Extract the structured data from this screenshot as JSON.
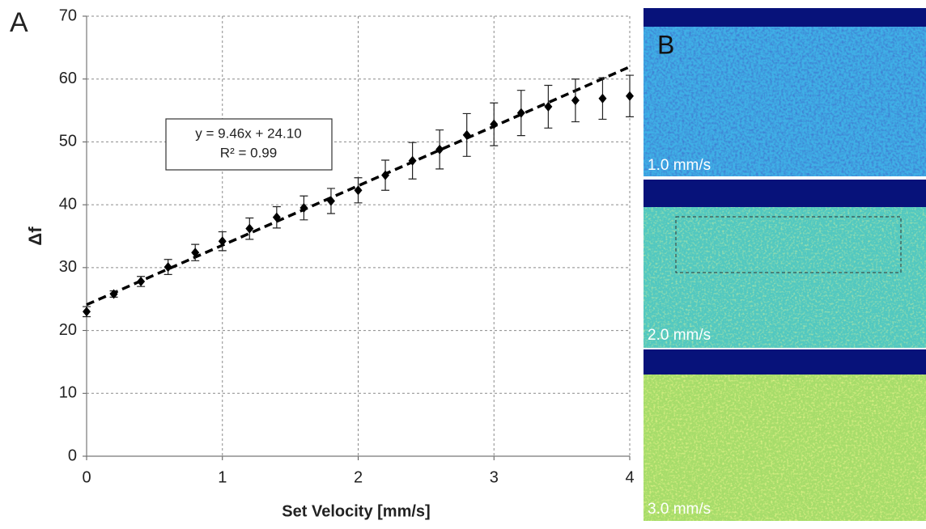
{
  "chart_data": {
    "type": "scatter",
    "panel_label": "A",
    "x": [
      0,
      0.2,
      0.4,
      0.6,
      0.8,
      1.0,
      1.2,
      1.4,
      1.6,
      1.8,
      2.0,
      2.2,
      2.4,
      2.6,
      2.8,
      3.0,
      3.2,
      3.4,
      3.6,
      3.8,
      4.0
    ],
    "values": [
      23.0,
      25.8,
      27.8,
      30.1,
      32.4,
      34.2,
      36.2,
      38.0,
      39.5,
      40.6,
      42.3,
      44.7,
      47.0,
      48.8,
      51.1,
      52.8,
      54.6,
      55.6,
      56.6,
      56.9,
      57.3
    ],
    "errors": [
      0.8,
      0.5,
      0.8,
      1.2,
      1.3,
      1.5,
      1.7,
      1.7,
      1.9,
      2.0,
      2.0,
      2.4,
      2.9,
      3.1,
      3.4,
      3.4,
      3.6,
      3.4,
      3.4,
      3.3,
      3.3
    ],
    "color": "#000000",
    "trendline": {
      "slope": 9.46,
      "intercept": 24.1
    },
    "annotation": [
      "y = 9.46x + 24.10",
      "R² = 0.99"
    ],
    "xlabel": "Set Velocity [mm/s]",
    "ylabel": "Δf",
    "xlim": [
      0,
      4
    ],
    "xticks": [
      0,
      1,
      2,
      3,
      4
    ],
    "ylim": [
      0,
      70
    ],
    "yticks": [
      0,
      10,
      20,
      30,
      40,
      50,
      60,
      70
    ],
    "grid": true
  },
  "images": {
    "panel_label": "B",
    "labels": [
      "1.0 mm/s",
      "2.0 mm/s",
      "3.0 mm/s"
    ]
  }
}
